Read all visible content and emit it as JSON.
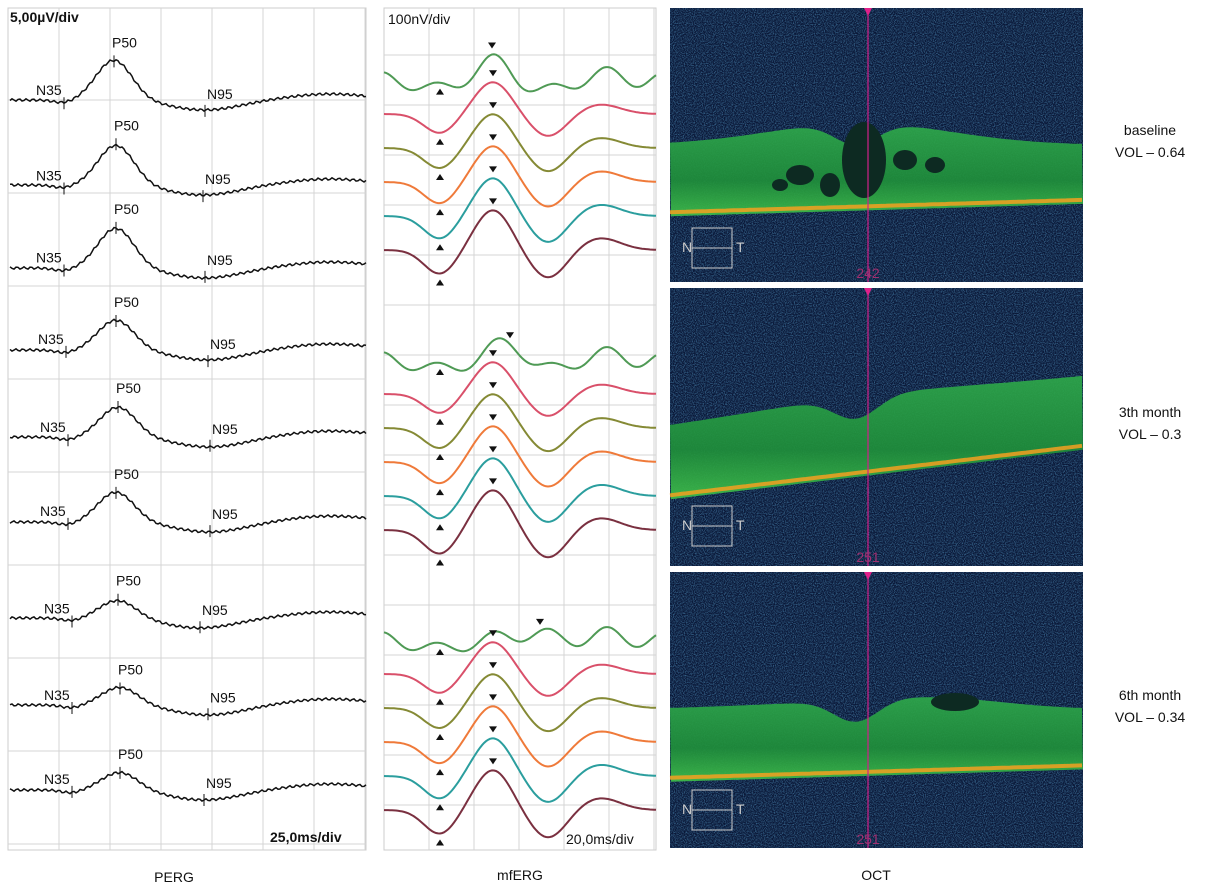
{
  "perg": {
    "scale": "5,00µV/div",
    "time_scale": "25,0ms/div",
    "traces": [
      {
        "n35": "N35",
        "p50": "P50",
        "n95": "N95"
      },
      {
        "n35": "N35",
        "p50": "P50",
        "n95": "N95"
      },
      {
        "n35": "N35",
        "p50": "P50",
        "n95": "N95"
      },
      {
        "n35": "N35",
        "p50": "P50",
        "n95": "N95"
      },
      {
        "n35": "N35",
        "p50": "P50",
        "n95": "N95"
      },
      {
        "n35": "N35",
        "p50": "P50",
        "n95": "N95"
      },
      {
        "n35": "N35",
        "p50": "P50",
        "n95": "N95"
      },
      {
        "n35": "N35",
        "p50": "P50",
        "n95": "N95"
      },
      {
        "n35": "N35",
        "p50": "P50",
        "n95": "N95"
      }
    ]
  },
  "mferg": {
    "scale": "100nV/div",
    "time_scale": "20,0ms/div"
  },
  "oct": {
    "scans": [
      {
        "label": "baseline",
        "vol": "VOL – 0.64",
        "position": "242",
        "nasal": "N",
        "temporal": "T"
      },
      {
        "label": "3th month",
        "vol": "VOL – 0.3",
        "position": "251",
        "nasal": "N",
        "temporal": "T"
      },
      {
        "label": "6th month",
        "vol": "VOL – 0.34",
        "position": "251",
        "nasal": "N",
        "temporal": "T"
      }
    ]
  },
  "captions": [
    "PERG",
    "mfERG",
    "OCT"
  ]
}
